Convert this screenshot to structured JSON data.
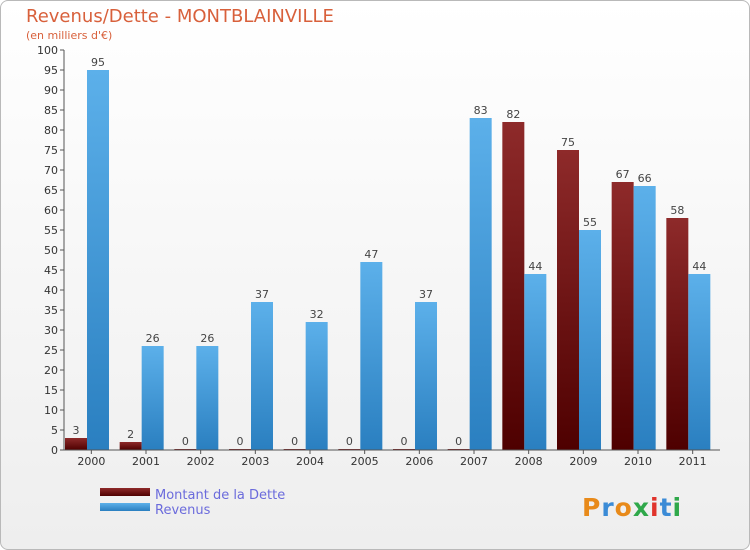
{
  "chart_data": {
    "type": "bar",
    "title": "Revenus/Dette - MONTBLAINVILLE",
    "subtitle": "(en milliers d'€)",
    "categories": [
      "2000",
      "2001",
      "2002",
      "2003",
      "2004",
      "2005",
      "2006",
      "2007",
      "2008",
      "2009",
      "2010",
      "2011"
    ],
    "series": [
      {
        "name": "Montant de la Dette",
        "color": "#7a1010",
        "values": [
          3,
          2,
          0,
          0,
          0,
          0,
          0,
          0,
          82,
          75,
          67,
          58
        ]
      },
      {
        "name": "Revenus",
        "color": "#3d9be0",
        "values": [
          95,
          26,
          26,
          37,
          32,
          47,
          37,
          83,
          44,
          55,
          66,
          44
        ]
      }
    ],
    "ylim": [
      0,
      100
    ],
    "ytick_step": 5,
    "grid": false,
    "legend": "bottom-left",
    "xlabel": "",
    "ylabel": ""
  },
  "logo": {
    "text": "Proxiti"
  }
}
